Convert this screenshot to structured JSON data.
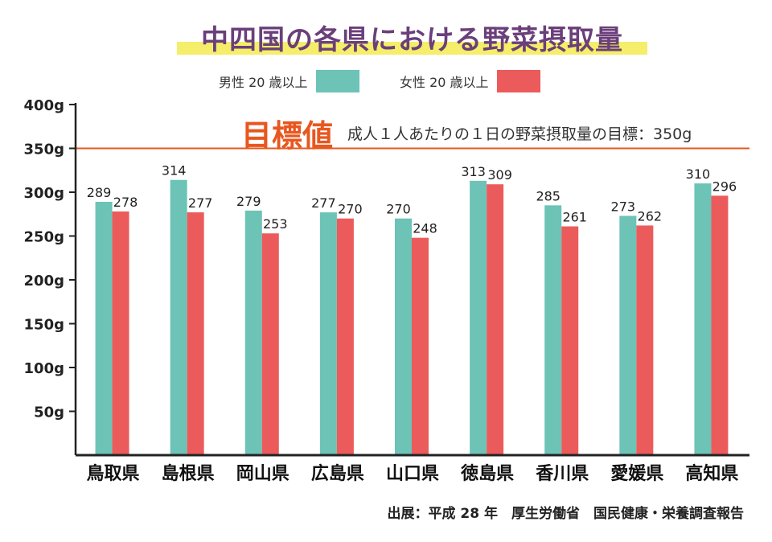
{
  "title": "中四国の各県における野菜摂取量",
  "target": {
    "label": "目標値",
    "description": "成人１人あたりの１日の野菜摂取量の目標：350g",
    "value": 350,
    "color": "#e8571f"
  },
  "source": "出展：平成 28 年　厚生労働省　国民健康・栄養調査報告",
  "colors": {
    "male": "#6cc3b6",
    "female": "#ec5b5b",
    "axis": "#222222",
    "title": "#6b3f7a",
    "highlight": "#f5ee6a"
  },
  "chart_data": {
    "type": "bar",
    "categories": [
      "鳥取県",
      "島根県",
      "岡山県",
      "広島県",
      "山口県",
      "徳島県",
      "香川県",
      "愛媛県",
      "高知県"
    ],
    "series": [
      {
        "name": "男性 20 歳以上",
        "values": [
          289,
          314,
          279,
          277,
          270,
          313,
          285,
          273,
          310
        ]
      },
      {
        "name": "女性 20 歳以上",
        "values": [
          278,
          277,
          253,
          270,
          248,
          309,
          261,
          262,
          296
        ]
      }
    ],
    "yticks": [
      "50g",
      "100g",
      "150g",
      "200g",
      "250g",
      "300g",
      "350g",
      "400g"
    ],
    "ytick_values": [
      50,
      100,
      150,
      200,
      250,
      300,
      350,
      400
    ],
    "ylim": [
      0,
      400
    ],
    "legend": "top-center",
    "grid": false
  }
}
